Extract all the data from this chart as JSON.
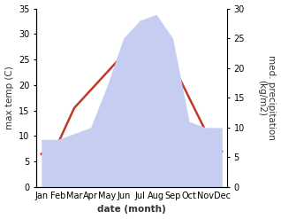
{
  "months": [
    "Jan",
    "Feb",
    "Mar",
    "Apr",
    "May",
    "Jun",
    "Jul",
    "Aug",
    "Sep",
    "Oct",
    "Nov",
    "Dec"
  ],
  "max_temp": [
    6.5,
    8.5,
    15.5,
    19.0,
    22.5,
    26.0,
    29.5,
    29.0,
    24.0,
    17.5,
    11.0,
    7.0
  ],
  "precipitation": [
    8.0,
    8.0,
    9.0,
    10.0,
    17.0,
    25.0,
    28.0,
    29.0,
    25.0,
    11.0,
    10.0,
    10.0
  ],
  "temp_color": "#c0392b",
  "precip_fill_color": "#c5cdf0",
  "ylabel_left": "max temp (C)",
  "ylabel_right": "med. precipitation\n(kg/m2)",
  "xlabel": "date (month)",
  "ylim_left": [
    0,
    35
  ],
  "ylim_right": [
    0,
    30
  ],
  "label_fontsize": 7.5,
  "tick_fontsize": 7
}
